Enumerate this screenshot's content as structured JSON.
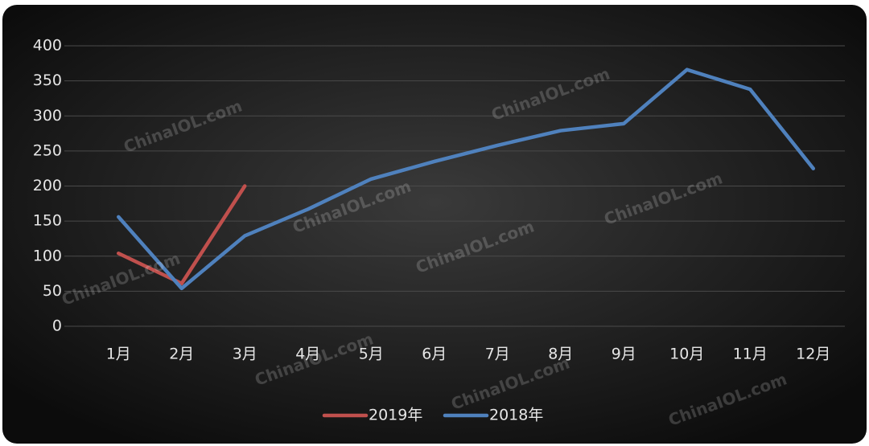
{
  "chart_data": {
    "type": "line",
    "categories": [
      "1月",
      "2月",
      "3月",
      "4月",
      "5月",
      "6月",
      "7月",
      "8月",
      "9月",
      "10月",
      "11月",
      "12月"
    ],
    "series": [
      {
        "name": "2019年",
        "color": "#c0504d",
        "values": [
          104,
          61,
          200,
          null,
          null,
          null,
          null,
          null,
          null,
          null,
          null,
          null
        ]
      },
      {
        "name": "2018年",
        "color": "#4f81bd",
        "values": [
          156,
          54,
          129,
          167,
          210,
          235,
          258,
          279,
          289,
          366,
          338,
          225
        ]
      }
    ],
    "ylim": [
      0,
      400
    ],
    "yticks": [
      0,
      50,
      100,
      150,
      200,
      250,
      300,
      350,
      400
    ],
    "grid": true,
    "legend": "bottom",
    "watermark": "ChinaIOL.com"
  }
}
